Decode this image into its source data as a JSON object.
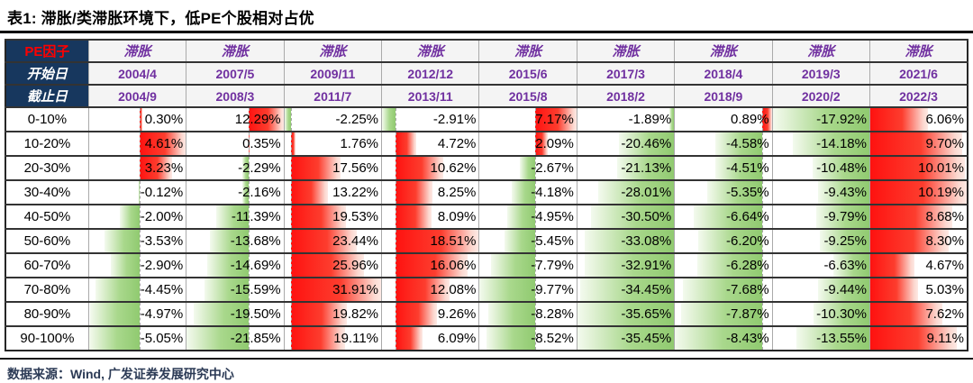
{
  "title": {
    "prefix": "表1: ",
    "text": " 滞胀/类滞胀环境下，低PE个股相对占优"
  },
  "footer": {
    "source": "数据来源：Wind, 广发证券发展研究中心"
  },
  "colors": {
    "header_navy": "#17375e",
    "corner_red": "#ff0000",
    "purple": "#7030a0",
    "positive_bar_red": "#fe1210",
    "negative_bar_green": "#90ca70",
    "header_fill": "#f4f4f4"
  },
  "chart_data": {
    "type": "table",
    "title": "表1: 滞胀/类滞胀环境下，低PE个股相对占优",
    "corner_label": "PE因子",
    "start_row_label": "开始日",
    "end_row_label": "截止日",
    "value_format": "percent_2dp",
    "conditional_format": "excel-data-bars (red = positive, green = negative, per-column axis)",
    "columns": [
      {
        "env": "滞胀",
        "start": "2004/4",
        "end": "2004/9"
      },
      {
        "env": "滞胀",
        "start": "2007/5",
        "end": "2008/3"
      },
      {
        "env": "滞胀",
        "start": "2009/11",
        "end": "2011/7"
      },
      {
        "env": "滞胀",
        "start": "2012/12",
        "end": "2013/11"
      },
      {
        "env": "滞胀",
        "start": "2015/6",
        "end": "2015/8"
      },
      {
        "env": "滞胀",
        "start": "2017/3",
        "end": "2018/2"
      },
      {
        "env": "滞胀",
        "start": "2018/4",
        "end": "2018/9"
      },
      {
        "env": "滞胀",
        "start": "2019/3",
        "end": "2020/2"
      },
      {
        "env": "滞胀",
        "start": "2021/6",
        "end": "2022/3"
      }
    ],
    "rows": [
      {
        "label": "0-10%",
        "values": [
          0.3,
          12.29,
          -2.25,
          -2.91,
          7.17,
          -1.89,
          0.89,
          -17.92,
          6.06
        ]
      },
      {
        "label": "10-20%",
        "values": [
          4.61,
          0.35,
          1.76,
          4.72,
          2.09,
          -20.46,
          -4.58,
          -14.18,
          9.7
        ]
      },
      {
        "label": "20-30%",
        "values": [
          3.23,
          -2.29,
          17.56,
          10.62,
          -2.67,
          -21.13,
          -4.51,
          -10.48,
          10.01
        ]
      },
      {
        "label": "30-40%",
        "values": [
          -0.12,
          -2.16,
          13.22,
          8.25,
          -4.18,
          -28.01,
          -5.35,
          -9.43,
          10.19
        ]
      },
      {
        "label": "40-50%",
        "values": [
          -2.0,
          -11.39,
          19.53,
          8.09,
          -4.95,
          -30.5,
          -6.64,
          -9.79,
          8.68
        ]
      },
      {
        "label": "50-60%",
        "values": [
          -3.53,
          -13.68,
          23.44,
          18.51,
          -5.45,
          -33.08,
          -6.2,
          -9.25,
          8.3
        ]
      },
      {
        "label": "60-70%",
        "values": [
          -2.9,
          -14.69,
          25.96,
          16.06,
          -7.79,
          -32.91,
          -6.28,
          -6.63,
          4.67
        ]
      },
      {
        "label": "70-80%",
        "values": [
          -4.45,
          -15.59,
          31.91,
          12.08,
          -9.77,
          -34.45,
          -7.68,
          -9.44,
          5.03
        ]
      },
      {
        "label": "80-90%",
        "values": [
          -4.97,
          -19.5,
          19.82,
          9.26,
          -8.28,
          -35.65,
          -7.87,
          -10.3,
          7.62
        ]
      },
      {
        "label": "90-100%",
        "values": [
          -5.05,
          -21.85,
          19.11,
          6.09,
          -8.52,
          -35.45,
          -8.43,
          -13.55,
          9.11
        ]
      }
    ]
  }
}
